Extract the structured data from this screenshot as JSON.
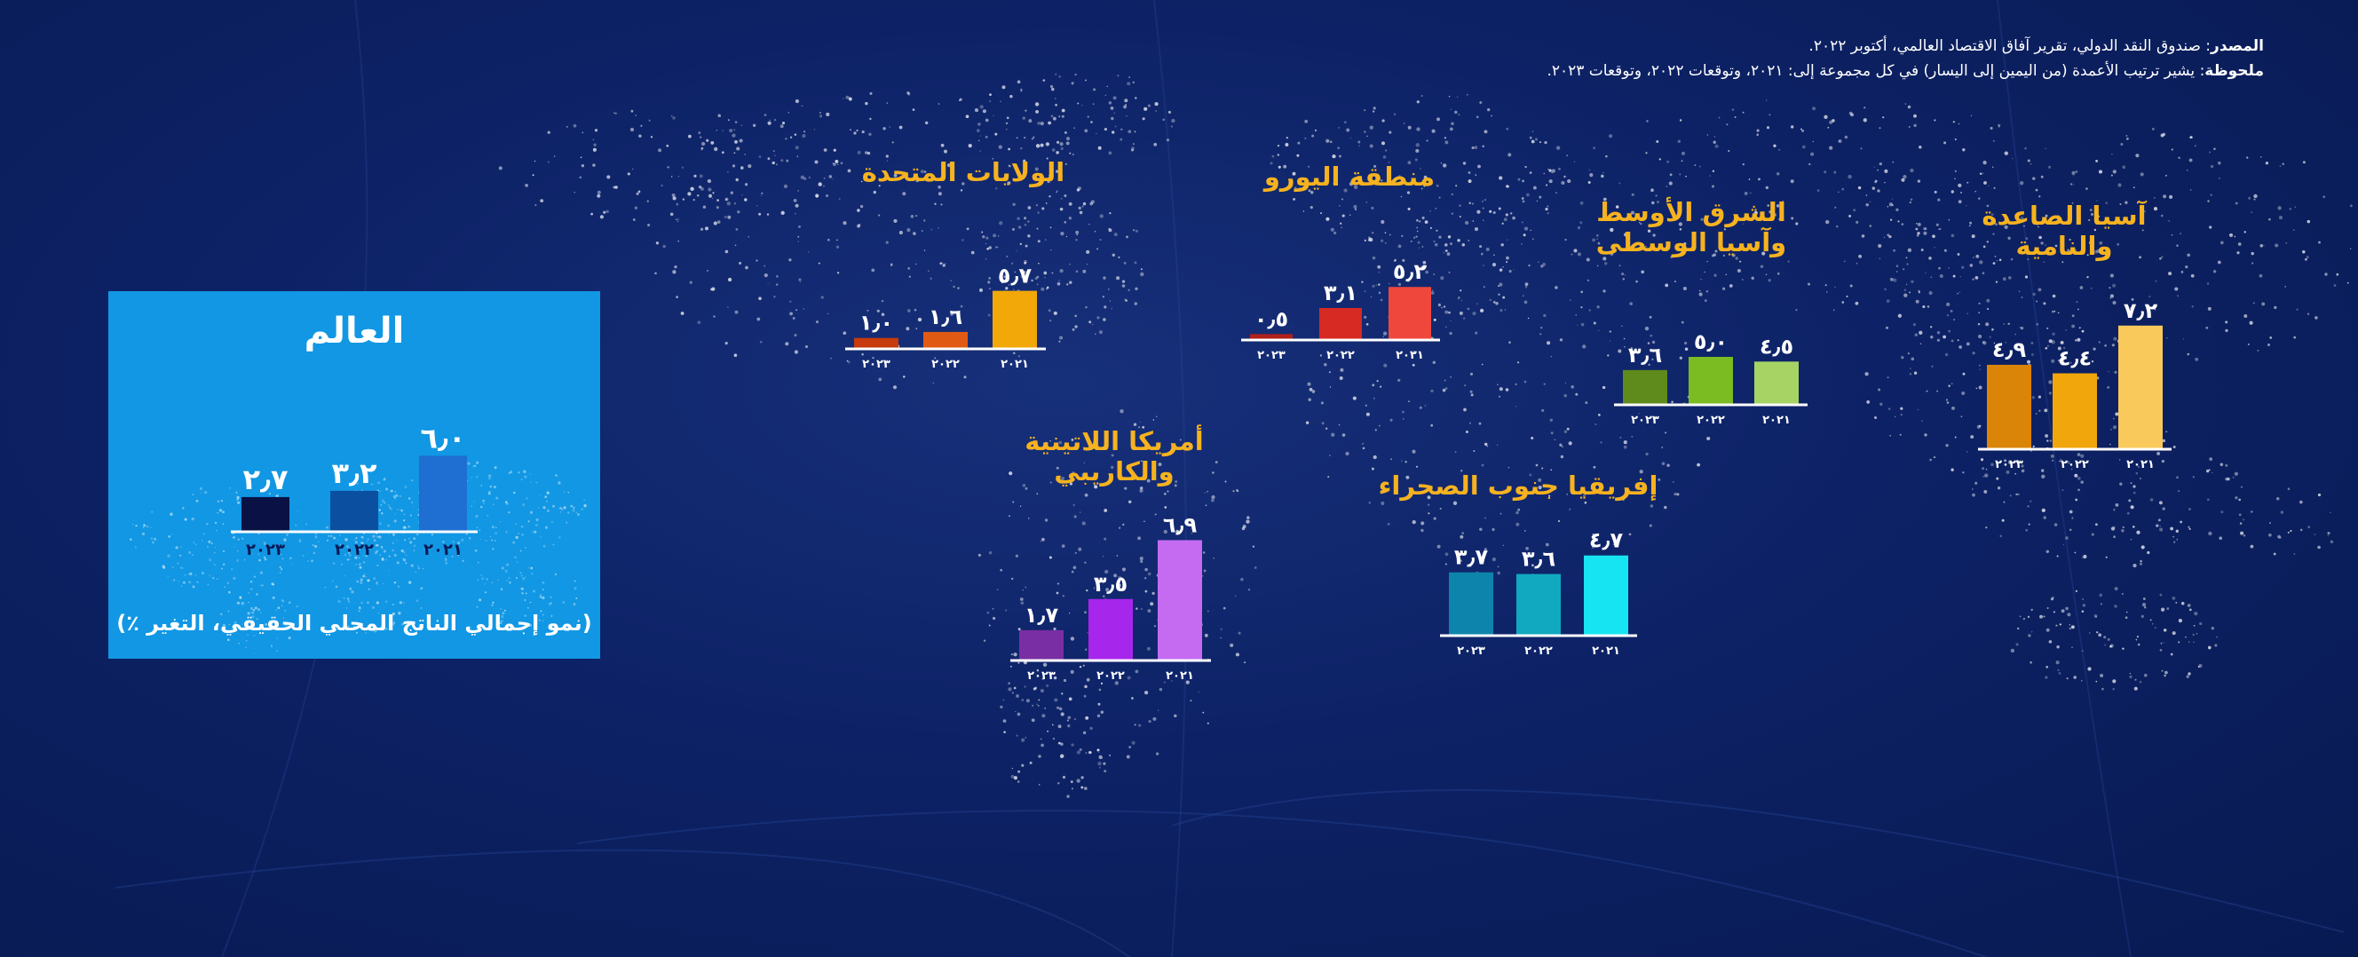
{
  "source": {
    "label": "المصدر",
    "text": ": صندوق النقد الدولي، تقرير آفاق الاقتصاد العالمي، أكتوبر ٢٠٢٢."
  },
  "note": {
    "label": "ملحوظة",
    "text": ": يشير ترتيب الأعمدة (من اليمين إلى اليسار) في كل مجموعة إلى: ٢٠٢١، وتوقعات ٢٠٢٢، وتوقعات ٢٠٢٣."
  },
  "world_caption": "(نمو إجمالي الناتج المحلي الحقيقي، التغير ٪)",
  "chart_data": [
    {
      "type": "bar",
      "title": "العالم",
      "categories": [
        "٢٠٢٣",
        "٢٠٢٢",
        "٢٠٢١"
      ],
      "values": [
        2.7,
        3.2,
        6.0
      ],
      "value_labels": [
        "٢٫٧",
        "٣٫٢",
        "٦٫٠"
      ],
      "colors": [
        "#0a1245",
        "#0a4fa0",
        "#1e6fd1"
      ]
    },
    {
      "type": "bar",
      "title": "الولايات المتحدة",
      "categories": [
        "٢٠٢٣",
        "٢٠٢٢",
        "٢٠٢١"
      ],
      "values": [
        1.0,
        1.6,
        5.7
      ],
      "value_labels": [
        "١٫٠",
        "١٫٦",
        "٥٫٧"
      ],
      "colors": [
        "#c73a0d",
        "#e15a14",
        "#f3a80a"
      ]
    },
    {
      "type": "bar",
      "title": "منطقة اليورو",
      "categories": [
        "٢٠٢٣",
        "٢٠٢٢",
        "٢٠٢١"
      ],
      "values": [
        0.5,
        3.1,
        5.2
      ],
      "value_labels": [
        "٠٫٥",
        "٣٫١",
        "٥٫٢"
      ],
      "colors": [
        "#b11f1a",
        "#d62a22",
        "#f0473c"
      ]
    },
    {
      "type": "bar",
      "title": "الشرق الأوسط وآسيا الوسطى",
      "categories": [
        "٢٠٢٣",
        "٢٠٢٢",
        "٢٠٢١"
      ],
      "values": [
        3.6,
        5.0,
        4.5
      ],
      "value_labels": [
        "٣٫٦",
        "٥٫٠",
        "٤٫٥"
      ],
      "colors": [
        "#5f8a1c",
        "#7cbc23",
        "#a6d364"
      ]
    },
    {
      "type": "bar",
      "title": "آسيا الصاعدة والنامية",
      "categories": [
        "٢٠٢٣",
        "٢٠٢٢",
        "٢٠٢١"
      ],
      "values": [
        4.9,
        4.4,
        7.2
      ],
      "value_labels": [
        "٤٫٩",
        "٤٫٤",
        "٧٫٢"
      ],
      "colors": [
        "#db8508",
        "#f1a60c",
        "#fac95b"
      ]
    },
    {
      "type": "bar",
      "title": "أمريكا اللاتينية والكاريبي",
      "categories": [
        "٢٠٢٣",
        "٢٠٢٢",
        "٢٠٢١"
      ],
      "values": [
        1.7,
        3.5,
        6.9
      ],
      "value_labels": [
        "١٫٧",
        "٣٫٥",
        "٦٫٩"
      ],
      "colors": [
        "#7a2ea3",
        "#a726ec",
        "#c46bf2"
      ]
    },
    {
      "type": "bar",
      "title": "إفريقيا جنوب الصحراء",
      "categories": [
        "٢٠٢٣",
        "٢٠٢٢",
        "٢٠٢١"
      ],
      "values": [
        3.7,
        3.6,
        4.7
      ],
      "value_labels": [
        "٣٫٧",
        "٣٫٦",
        "٤٫٧"
      ],
      "colors": [
        "#0d84ab",
        "#11a9bf",
        "#17e4f2"
      ]
    }
  ]
}
